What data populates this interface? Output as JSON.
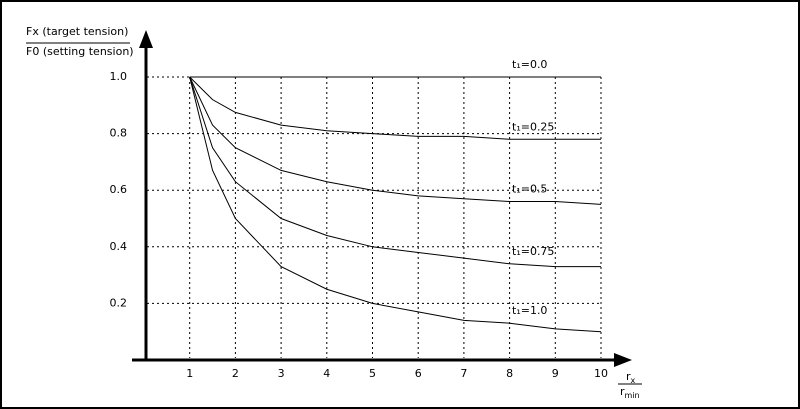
{
  "chart_data": {
    "type": "line",
    "y_label": {
      "numerator": "Fx (target tension)",
      "denominator": "F0 (setting tension)"
    },
    "x_label": {
      "numerator": {
        "base": "r",
        "sub": "x"
      },
      "denominator": {
        "base": "r",
        "sub": "min"
      }
    },
    "x": [
      1,
      1.5,
      2,
      3,
      4,
      5,
      6,
      7,
      8,
      9,
      10
    ],
    "series": [
      {
        "name": "t₁=0.0",
        "color": "#000000",
        "values": [
          1,
          1,
          1,
          1,
          1,
          1,
          1,
          1,
          1,
          1,
          1
        ]
      },
      {
        "name": "t₁=0.25",
        "color": "#000000",
        "values": [
          1,
          0.92,
          0.875,
          0.83,
          0.81,
          0.8,
          0.79,
          0.79,
          0.78,
          0.78,
          0.78
        ]
      },
      {
        "name": "t₁=0.5",
        "color": "#000000",
        "values": [
          1,
          0.83,
          0.75,
          0.67,
          0.63,
          0.6,
          0.58,
          0.57,
          0.56,
          0.56,
          0.55
        ]
      },
      {
        "name": "t₁=0.75",
        "color": "#000000",
        "values": [
          1,
          0.75,
          0.63,
          0.5,
          0.44,
          0.4,
          0.38,
          0.36,
          0.34,
          0.33,
          0.33
        ]
      },
      {
        "name": "t₁=1.0",
        "color": "#000000",
        "values": [
          1,
          0.67,
          0.5,
          0.33,
          0.25,
          0.2,
          0.17,
          0.14,
          0.13,
          0.11,
          0.1
        ]
      }
    ],
    "xlim": [
      0,
      10
    ],
    "ylim": [
      0,
      1
    ],
    "xticks": [
      1,
      2,
      3,
      4,
      5,
      6,
      7,
      8,
      9,
      10
    ],
    "yticks": [
      0.2,
      0.4,
      0.6,
      0.8,
      {
        "value": 1,
        "label": "1.0"
      }
    ],
    "grid": true
  }
}
